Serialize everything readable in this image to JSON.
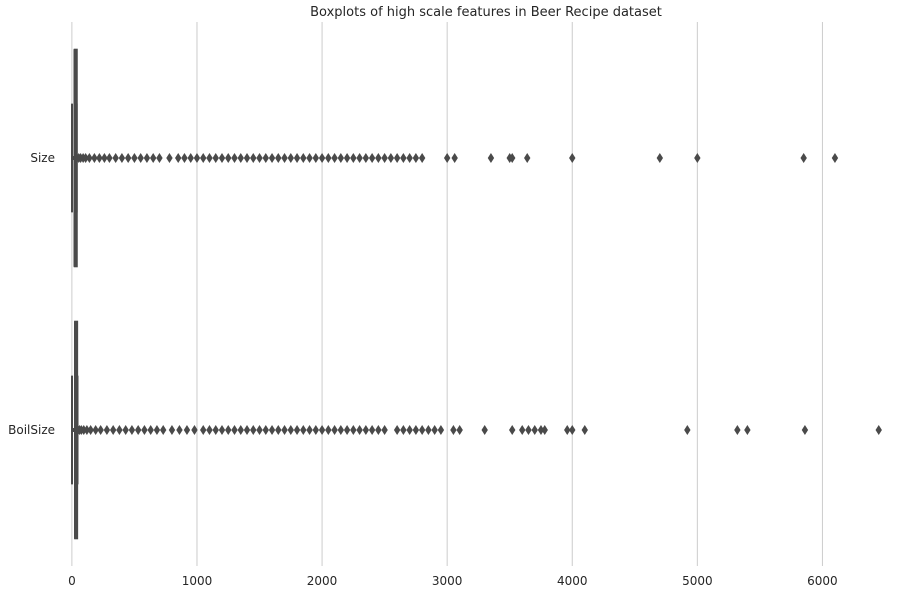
{
  "chart_data": {
    "type": "boxplot",
    "orientation": "horizontal",
    "title": "Boxplots of high scale features in Beer Recipe dataset",
    "xlabel": "",
    "ylabel": "",
    "xlim": [
      -95,
      6620
    ],
    "xticks": [
      0,
      1000,
      2000,
      3000,
      4000,
      5000,
      6000
    ],
    "xtick_labels": [
      "0",
      "1000",
      "2000",
      "3000",
      "4000",
      "5000",
      "6000"
    ],
    "grid": "vertical",
    "box_color": "#4a4a4a",
    "grid_color": "#cccccc",
    "series": [
      {
        "name": "Size",
        "box": {
          "whisker_low": 1,
          "q1": 19,
          "median": 20.8,
          "q3": 23,
          "whisker_high": 38
        },
        "outliers": [
          40,
          55,
          70,
          90,
          110,
          140,
          180,
          220,
          260,
          300,
          350,
          400,
          450,
          500,
          550,
          600,
          650,
          700,
          780,
          850,
          900,
          950,
          1000,
          1050,
          1100,
          1150,
          1200,
          1250,
          1300,
          1350,
          1400,
          1450,
          1500,
          1550,
          1600,
          1650,
          1700,
          1750,
          1800,
          1850,
          1900,
          1950,
          2000,
          2050,
          2100,
          2150,
          2200,
          2250,
          2300,
          2350,
          2400,
          2450,
          2500,
          2550,
          2600,
          2650,
          2700,
          2750,
          2800,
          3000,
          3060,
          3350,
          3500,
          3520,
          3640,
          4000,
          4700,
          5000,
          5850,
          6100
        ]
      },
      {
        "name": "BoilSize",
        "box": {
          "whisker_low": 1,
          "q1": 22,
          "median": 25,
          "q3": 28,
          "whisker_high": 45
        },
        "outliers": [
          48,
          60,
          75,
          95,
          120,
          150,
          190,
          230,
          280,
          330,
          380,
          430,
          480,
          530,
          580,
          630,
          680,
          730,
          800,
          860,
          920,
          980,
          1050,
          1100,
          1150,
          1200,
          1250,
          1300,
          1350,
          1400,
          1450,
          1500,
          1550,
          1600,
          1650,
          1700,
          1750,
          1800,
          1850,
          1900,
          1950,
          2000,
          2050,
          2100,
          2150,
          2200,
          2250,
          2300,
          2350,
          2400,
          2450,
          2500,
          2600,
          2650,
          2700,
          2750,
          2800,
          2850,
          2900,
          2950,
          3050,
          3100,
          3300,
          3520,
          3600,
          3650,
          3700,
          3750,
          3780,
          3960,
          4000,
          4100,
          4920,
          5320,
          5400,
          5860,
          6450
        ]
      }
    ]
  }
}
